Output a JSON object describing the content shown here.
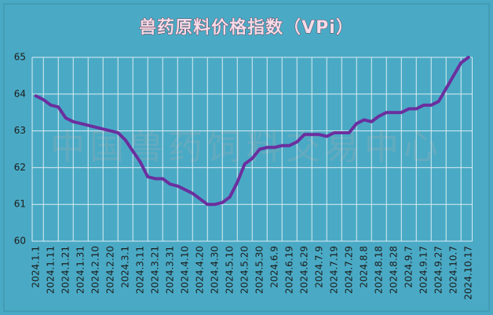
{
  "chart_data": {
    "type": "line",
    "title": "兽药原料价格指数（VPi）",
    "watermark": "中国兽药饲料交易中心",
    "categories": [
      "2024.1.1",
      null,
      "2024.1.11",
      null,
      "2024.1.21",
      null,
      "2024.1.31",
      null,
      "2024.2.10",
      null,
      "2024.2.20",
      null,
      "2024.3.1",
      null,
      "2024.3.11",
      null,
      "2024.3.21",
      null,
      "2024.3.31",
      null,
      "2024.4.10",
      null,
      "2024.4.20",
      null,
      "2024.4.30",
      null,
      "2024.5.10",
      null,
      "2024.5.20",
      null,
      "2024.5.30",
      null,
      "2024.6.9",
      null,
      "2024.6.19",
      null,
      "2024.6.29",
      null,
      "2024.7.9",
      null,
      "2024.7.19",
      null,
      "2024.7.29",
      null,
      "2024.8.8",
      null,
      "2024.8.18",
      null,
      "2024.8.28",
      null,
      "2024.9.7",
      null,
      "2024.9.17",
      null,
      "2024.9.27",
      null,
      "2024.10.7",
      null,
      "2024.10.17"
    ],
    "values": [
      63.95,
      63.85,
      63.7,
      63.65,
      63.35,
      63.25,
      63.2,
      63.15,
      63.1,
      63.05,
      63.0,
      62.95,
      62.75,
      62.45,
      62.15,
      61.75,
      61.7,
      61.7,
      61.55,
      61.5,
      61.4,
      61.3,
      61.15,
      61.0,
      61.0,
      61.05,
      61.2,
      61.6,
      62.1,
      62.25,
      62.5,
      62.55,
      62.55,
      62.6,
      62.6,
      62.7,
      62.9,
      62.9,
      62.9,
      62.85,
      62.95,
      62.95,
      62.95,
      63.2,
      63.3,
      63.25,
      63.4,
      63.5,
      63.5,
      63.5,
      63.6,
      63.6,
      63.7,
      63.7,
      63.8,
      64.15,
      64.5,
      64.85,
      65.0
    ],
    "color": "#6b2f9e",
    "ylim": [
      60,
      65
    ],
    "yticks": [
      60,
      61,
      62,
      63,
      64,
      65
    ],
    "grid": true
  }
}
